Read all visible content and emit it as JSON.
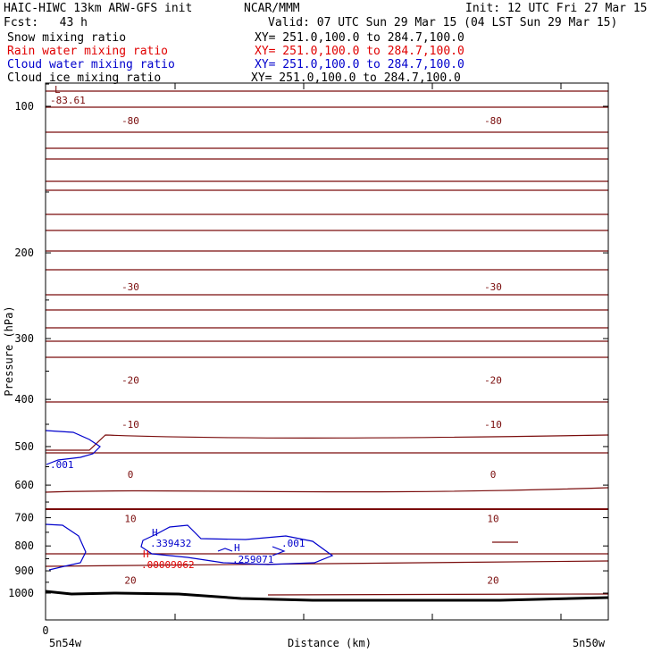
{
  "header": {
    "title_left": "HAIC-HIWC 13km ARW-GFS init",
    "title_center": "NCAR/MMM",
    "init": "Init: 12 UTC Fri 27 Mar 15",
    "fcst": "Fcst:   43 h",
    "valid": "Valid: 07 UTC Sun 29 Mar 15 (04 LST Sun 29 Mar 15)"
  },
  "legend": [
    {
      "name": "Snow mixing ratio",
      "xy": "XY= 251.0,100.0 to 284.7,100.0",
      "color": "#000000"
    },
    {
      "name": "Rain water mixing ratio",
      "xy": "XY= 251.0,100.0 to 284.7,100.0",
      "color": "#e00000"
    },
    {
      "name": "Cloud water mixing ratio",
      "xy": "XY= 251.0,100.0 to 284.7,100.0",
      "color": "#0000cc"
    },
    {
      "name": "Cloud ice mixing ratio",
      "xy": "XY= 251.0,100.0 to 284.7,100.0",
      "color": "#000000"
    }
  ],
  "colors": {
    "temperature": "#7a0c0c",
    "cloud_water": "#0000cc",
    "rain": "#e00000",
    "terrain": "#000000"
  },
  "chart_data": {
    "type": "line",
    "xlabel": "Distance (km)",
    "ylabel": "Pressure (hPa)",
    "y_scale": "log",
    "ylim": [
      1050,
      70
    ],
    "x_ticks": [
      "0"
    ],
    "x_endpoint_labels": [
      "5n54w",
      "5n50w"
    ],
    "y_ticks": [
      "100",
      "200",
      "300",
      "400",
      "500",
      "600",
      "700",
      "800",
      "900",
      "1000"
    ],
    "isotherms": [
      {
        "label": "-80",
        "p": 107
      },
      {
        "label": "-30",
        "p": 235
      },
      {
        "label": "-20",
        "p": 365
      },
      {
        "label": "-10",
        "p": 450
      },
      {
        "label": "0",
        "p": 570
      },
      {
        "label": "10",
        "p": 703
      },
      {
        "label": "20",
        "p": 940
      }
    ],
    "annotations": [
      {
        "text": "L",
        "color": "#7a0c0c"
      },
      {
        "text": "-83.61",
        "color": "#7a0c0c"
      },
      {
        "text": ".001",
        "color": "#0000cc"
      },
      {
        "text": "H",
        "color": "#0000cc"
      },
      {
        "text": ".339432",
        "color": "#0000cc"
      },
      {
        "text": "H",
        "color": "#0000cc"
      },
      {
        "text": ".259071",
        "color": "#0000cc"
      },
      {
        "text": ".001",
        "color": "#0000cc"
      },
      {
        "text": "H",
        "color": "#e00000"
      },
      {
        "text": ".00009062",
        "color": "#e00000"
      }
    ]
  }
}
